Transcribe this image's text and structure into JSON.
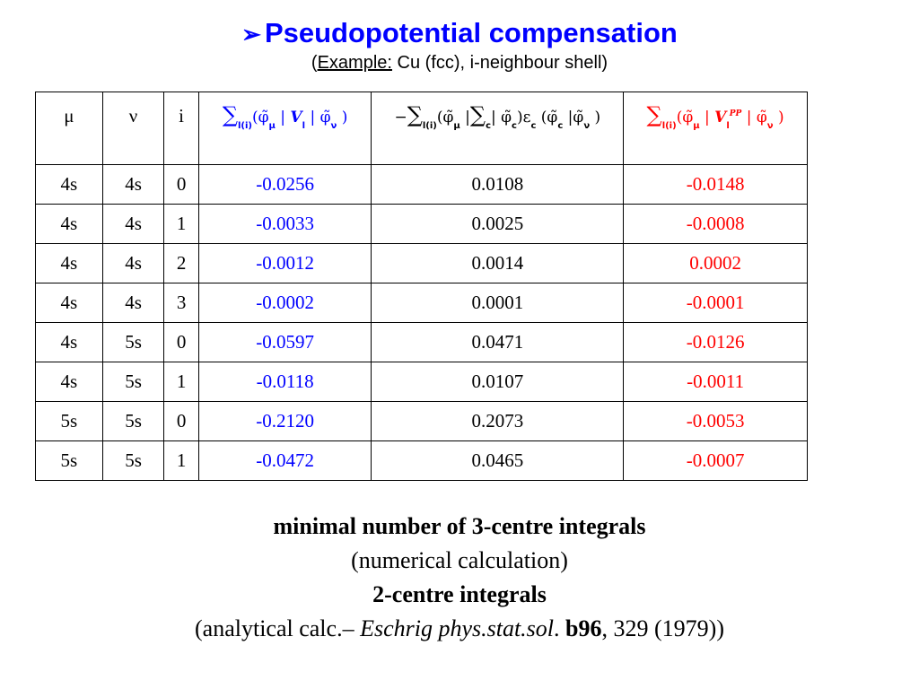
{
  "title": {
    "arrow": "➢",
    "text": "Pseudopotential compensation"
  },
  "subtitle": {
    "open": "(",
    "example": "Example:",
    "rest": " Cu (fcc), i-neighbour shell)"
  },
  "table": {
    "headers": {
      "mu": "μ",
      "nu": "ν",
      "i": "i",
      "col_a": {
        "sum": "∑",
        "sub": "l(i)",
        "body1": "(φ̃",
        "mu": "μ",
        "bar1": " | ",
        "v": "V",
        "v_sub": "l",
        "bar2": " | φ̃",
        "nu": "ν",
        "close": " )"
      },
      "col_b": {
        "minus": "−",
        "sum1": "∑",
        "sub1": "l(i)",
        "part1": "(φ̃",
        "mu": "μ",
        "part2": " |",
        "sum2": "∑",
        "sub2": "c",
        "part3": "| φ̃",
        "c1": "c",
        "part4": ")ε",
        "c2": "c",
        "part5": " (φ̃",
        "c3": "c",
        "part6": " |φ̃",
        "nu": "ν",
        "close": " )"
      },
      "col_c": {
        "sum": "∑",
        "sub": "l(i)",
        "body1": "(φ̃",
        "mu": "μ",
        "bar1": " | ",
        "v": "V",
        "v_sub": "l",
        "v_sup": "PP",
        "bar2": " | φ̃",
        "nu": "ν",
        "close": " )"
      }
    },
    "rows": [
      {
        "mu": "4s",
        "nu": "4s",
        "i": "0",
        "a": "-0.0256",
        "b": "0.0108",
        "c": "-0.0148"
      },
      {
        "mu": "4s",
        "nu": "4s",
        "i": "1",
        "a": "-0.0033",
        "b": "0.0025",
        "c": "-0.0008"
      },
      {
        "mu": "4s",
        "nu": "4s",
        "i": "2",
        "a": "-0.0012",
        "b": "0.0014",
        "c": "0.0002"
      },
      {
        "mu": "4s",
        "nu": "4s",
        "i": "3",
        "a": "-0.0002",
        "b": "0.0001",
        "c": "-0.0001"
      },
      {
        "mu": "4s",
        "nu": "5s",
        "i": "0",
        "a": "-0.0597",
        "b": "0.0471",
        "c": "-0.0126"
      },
      {
        "mu": "4s",
        "nu": "5s",
        "i": "1",
        "a": "-0.0118",
        "b": "0.0107",
        "c": "-0.0011"
      },
      {
        "mu": "5s",
        "nu": "5s",
        "i": "0",
        "a": "-0.2120",
        "b": "0.2073",
        "c": "-0.0053"
      },
      {
        "mu": "5s",
        "nu": "5s",
        "i": "1",
        "a": "-0.0472",
        "b": "0.0465",
        "c": "-0.0007"
      }
    ]
  },
  "notes": {
    "line1": "minimal number of 3-centre integrals",
    "line2": "(numerical calculation)",
    "line3": "2-centre integrals",
    "line4": {
      "pre": "(analytical calc.– ",
      "journal": "Eschrig phys.stat.sol",
      "dot": ". ",
      "vol": "b96",
      "post": ", 329 (1979))"
    }
  },
  "colors": {
    "title": "#0000ff",
    "col_a": "#0000ff",
    "col_c": "#ff0000",
    "text": "#000000"
  }
}
